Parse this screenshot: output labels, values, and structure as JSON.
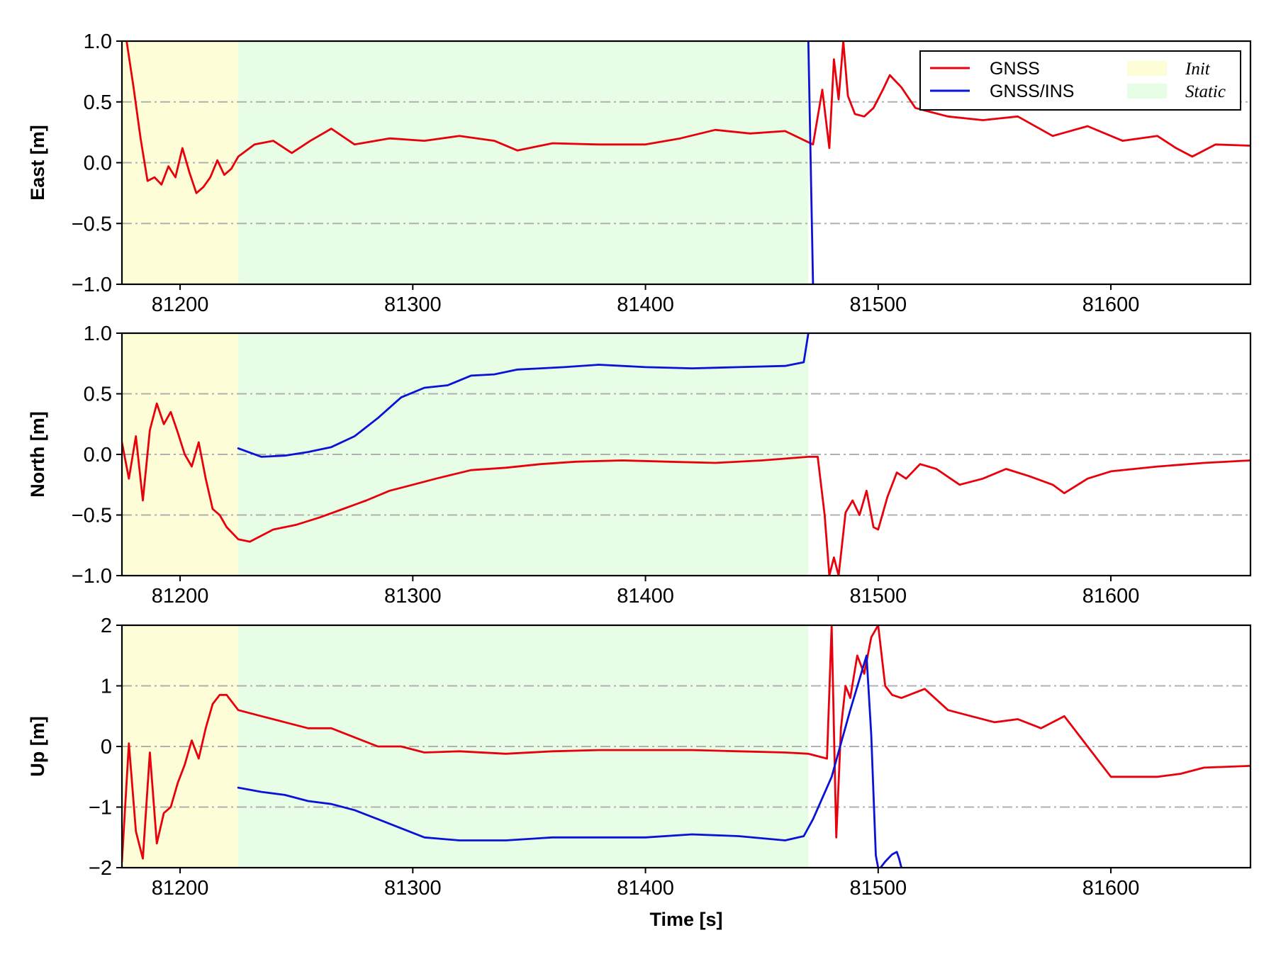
{
  "chart_data": {
    "type": "line",
    "xlabel": "Time [s]",
    "xlim": [
      81175,
      81660
    ],
    "xticks": [
      81200,
      81300,
      81400,
      81500,
      81600
    ],
    "grid": "horizontal dash-dot",
    "legend": {
      "placement": "top-right (top panel)",
      "entries": [
        {
          "label": "GNSS",
          "kind": "line",
          "color": "#e8000b"
        },
        {
          "label": "GNSS/INS",
          "kind": "line",
          "color": "#0a12d6"
        },
        {
          "label": "Init",
          "kind": "patch",
          "color": "#fdfdd8"
        },
        {
          "label": "Static",
          "kind": "patch",
          "color": "#e7fde6"
        }
      ]
    },
    "shaded_regions": [
      {
        "label": "Init",
        "x0": 81175,
        "x1": 81225,
        "color": "#fdfdd8"
      },
      {
        "label": "Static",
        "x0": 81225,
        "x1": 81470,
        "color": "#e7fde6"
      }
    ],
    "panels": [
      {
        "ylabel": "East [m]",
        "ylim": [
          -1.0,
          1.0
        ],
        "yticks": [
          1.0,
          0.5,
          0.0,
          -0.5,
          -1.0
        ],
        "ytick_labels": [
          "1.0",
          "0.5",
          "0.0",
          "−0.5",
          "−1.0"
        ],
        "series": [
          {
            "name": "GNSS",
            "color": "#e8000b",
            "x": [
              81177,
              81180,
              81183,
              81186,
              81189,
              81192,
              81195,
              81198,
              81201,
              81204,
              81207,
              81210,
              81213,
              81216,
              81219,
              81222,
              81225,
              81232,
              81240,
              81248,
              81256,
              81265,
              81275,
              81290,
              81305,
              81320,
              81335,
              81345,
              81360,
              81380,
              81400,
              81415,
              81430,
              81445,
              81460,
              81472,
              81476,
              81479,
              81481,
              81483,
              81485,
              81487,
              81490,
              81494,
              81498,
              81502,
              81505,
              81510,
              81516,
              81522,
              81530,
              81545,
              81560,
              81575,
              81590,
              81605,
              81620,
              81628,
              81635,
              81645,
              81660
            ],
            "y": [
              1.0,
              0.62,
              0.2,
              -0.15,
              -0.12,
              -0.18,
              -0.03,
              -0.12,
              0.12,
              -0.08,
              -0.25,
              -0.2,
              -0.12,
              0.02,
              -0.1,
              -0.05,
              0.05,
              0.15,
              0.18,
              0.08,
              0.18,
              0.28,
              0.15,
              0.2,
              0.18,
              0.22,
              0.18,
              0.1,
              0.16,
              0.15,
              0.15,
              0.2,
              0.27,
              0.24,
              0.26,
              0.15,
              0.6,
              0.12,
              0.85,
              0.52,
              1.0,
              0.55,
              0.4,
              0.38,
              0.45,
              0.6,
              0.72,
              0.62,
              0.45,
              0.42,
              0.38,
              0.35,
              0.38,
              0.22,
              0.3,
              0.18,
              0.22,
              0.12,
              0.05,
              0.15,
              0.14
            ]
          },
          {
            "name": "GNSS/INS",
            "color": "#0a12d6",
            "x": [
              81470,
              81472
            ],
            "y": [
              1.0,
              -1.0
            ]
          }
        ]
      },
      {
        "ylabel": "North [m]",
        "ylim": [
          -1.0,
          1.0
        ],
        "yticks": [
          1.0,
          0.5,
          0.0,
          -0.5,
          -1.0
        ],
        "ytick_labels": [
          "1.0",
          "0.5",
          "0.0",
          "−0.5",
          "−1.0"
        ],
        "series": [
          {
            "name": "GNSS",
            "color": "#e8000b",
            "x": [
              81175,
              81178,
              81181,
              81184,
              81187,
              81190,
              81193,
              81196,
              81199,
              81202,
              81205,
              81208,
              81211,
              81214,
              81217,
              81220,
              81225,
              81230,
              81240,
              81250,
              81260,
              81270,
              81280,
              81290,
              81300,
              81310,
              81325,
              81340,
              81355,
              81370,
              81390,
              81410,
              81430,
              81450,
              81470,
              81474,
              81477,
              81479,
              81481,
              81483,
              81486,
              81489,
              81492,
              81495,
              81498,
              81500,
              81504,
              81508,
              81512,
              81518,
              81525,
              81535,
              81545,
              81555,
              81565,
              81575,
              81580,
              81590,
              81600,
              81620,
              81640,
              81660
            ],
            "y": [
              0.1,
              -0.2,
              0.15,
              -0.38,
              0.2,
              0.42,
              0.25,
              0.35,
              0.18,
              0.0,
              -0.1,
              0.1,
              -0.2,
              -0.45,
              -0.5,
              -0.6,
              -0.7,
              -0.72,
              -0.62,
              -0.58,
              -0.52,
              -0.45,
              -0.38,
              -0.3,
              -0.25,
              -0.2,
              -0.13,
              -0.11,
              -0.08,
              -0.06,
              -0.05,
              -0.06,
              -0.07,
              -0.05,
              -0.02,
              -0.02,
              -0.5,
              -1.0,
              -0.85,
              -1.0,
              -0.48,
              -0.38,
              -0.5,
              -0.3,
              -0.6,
              -0.62,
              -0.35,
              -0.15,
              -0.2,
              -0.08,
              -0.12,
              -0.25,
              -0.2,
              -0.12,
              -0.18,
              -0.25,
              -0.32,
              -0.2,
              -0.14,
              -0.1,
              -0.07,
              -0.05
            ]
          },
          {
            "name": "GNSS/INS",
            "color": "#0a12d6",
            "x": [
              81225,
              81235,
              81245,
              81255,
              81265,
              81275,
              81285,
              81295,
              81305,
              81315,
              81325,
              81335,
              81345,
              81355,
              81365,
              81380,
              81400,
              81420,
              81440,
              81460,
              81468,
              81470
            ],
            "y": [
              0.05,
              -0.02,
              -0.01,
              0.02,
              0.06,
              0.15,
              0.3,
              0.47,
              0.55,
              0.57,
              0.65,
              0.66,
              0.7,
              0.71,
              0.72,
              0.74,
              0.72,
              0.71,
              0.72,
              0.73,
              0.76,
              1.0
            ]
          }
        ]
      },
      {
        "ylabel": "Up [m]",
        "ylim": [
          -2,
          2
        ],
        "yticks": [
          2,
          1,
          0,
          -1,
          -2
        ],
        "ytick_labels": [
          "2",
          "1",
          "0",
          "−1",
          "−2"
        ],
        "series": [
          {
            "name": "GNSS",
            "color": "#e8000b",
            "x": [
              81175,
              81178,
              81181,
              81184,
              81187,
              81190,
              81193,
              81196,
              81199,
              81202,
              81205,
              81208,
              81211,
              81214,
              81217,
              81220,
              81225,
              81235,
              81245,
              81255,
              81265,
              81275,
              81285,
              81295,
              81305,
              81320,
              81340,
              81360,
              81380,
              81400,
              81420,
              81440,
              81460,
              81470,
              81478,
              81480,
              81482,
              81484,
              81486,
              81488,
              81491,
              81494,
              81497,
              81500,
              81503,
              81506,
              81510,
              81520,
              81530,
              81540,
              81550,
              81560,
              81570,
              81580,
              81590,
              81600,
              81610,
              81620,
              81630,
              81640,
              81660
            ],
            "y": [
              -1.9,
              0.05,
              -1.4,
              -1.85,
              -0.1,
              -1.6,
              -1.1,
              -1.0,
              -0.6,
              -0.3,
              0.1,
              -0.2,
              0.3,
              0.7,
              0.85,
              0.85,
              0.6,
              0.5,
              0.4,
              0.3,
              0.3,
              0.15,
              0.0,
              0.0,
              -0.1,
              -0.08,
              -0.12,
              -0.08,
              -0.06,
              -0.06,
              -0.06,
              -0.08,
              -0.1,
              -0.12,
              -0.2,
              2.0,
              -1.5,
              0.3,
              1.0,
              0.8,
              1.5,
              1.2,
              1.8,
              2.0,
              1.0,
              0.85,
              0.8,
              0.95,
              0.6,
              0.5,
              0.4,
              0.45,
              0.3,
              0.5,
              0.0,
              -0.5,
              -0.5,
              -0.5,
              -0.45,
              -0.35,
              -0.32
            ]
          },
          {
            "name": "GNSS/INS",
            "color": "#0a12d6",
            "x": [
              81225,
              81235,
              81245,
              81255,
              81265,
              81275,
              81285,
              81295,
              81305,
              81320,
              81340,
              81360,
              81380,
              81400,
              81420,
              81440,
              81460,
              81468,
              81472,
              81480,
              81488,
              81495,
              81497,
              81499,
              81500
            ],
            "y": [
              -0.68,
              -0.75,
              -0.8,
              -0.9,
              -0.95,
              -1.05,
              -1.2,
              -1.35,
              -1.5,
              -1.55,
              -1.55,
              -1.5,
              -1.5,
              -1.5,
              -1.45,
              -1.48,
              -1.55,
              -1.48,
              -1.2,
              -0.5,
              0.6,
              1.5,
              0.2,
              -1.8,
              -2.0
            ]
          },
          {
            "name": "GNSS/INS",
            "color": "#0a12d6",
            "x": [
              81501,
              81503,
              81506,
              81508,
              81509,
              81510
            ],
            "y": [
              -2.0,
              -1.9,
              -1.78,
              -1.74,
              -1.85,
              -2.0
            ]
          }
        ]
      }
    ]
  }
}
